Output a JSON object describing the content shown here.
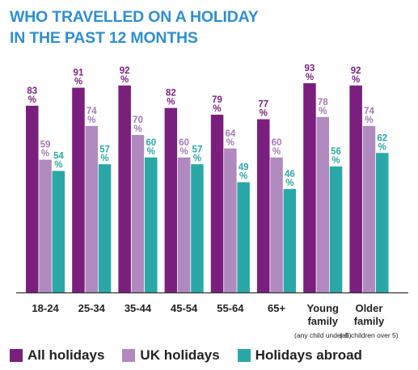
{
  "title_lines": [
    "WHO TRAVELLED ON A HOLIDAY",
    "IN THE PAST 12 MONTHS"
  ],
  "colors": {
    "title": "#2f8fd1",
    "all_holidays": "#7a1f7e",
    "uk_holidays": "#b08abf",
    "holidays_abroad": "#2aa8a7",
    "label_all": "#7a1f7e",
    "label_uk": "#a37ab3",
    "label_abroad": "#2aa8a7"
  },
  "chart_data": {
    "type": "bar",
    "title": "WHO TRAVELLED ON A HOLIDAY IN THE PAST 12 MONTHS",
    "categories": [
      "18-24",
      "25-34",
      "35-44",
      "45-54",
      "55-64",
      "65+",
      "Young family",
      "Older family"
    ],
    "category_lines": [
      [
        "18-24"
      ],
      [
        "25-34"
      ],
      [
        "35-44"
      ],
      [
        "45-54"
      ],
      [
        "55-64"
      ],
      [
        "65+"
      ],
      [
        "Young",
        "family"
      ],
      [
        "Older",
        "family"
      ]
    ],
    "category_notes": [
      "",
      "",
      "",
      "",
      "",
      "",
      "(any child under 5)",
      "(all children over 5)"
    ],
    "unit": "%",
    "series": [
      {
        "name": "All holidays",
        "values": [
          83,
          91,
          92,
          82,
          79,
          77,
          93,
          92
        ]
      },
      {
        "name": "UK holidays",
        "values": [
          59,
          74,
          70,
          60,
          64,
          60,
          78,
          74
        ]
      },
      {
        "name": "Holidays abroad",
        "values": [
          54,
          57,
          60,
          57,
          49,
          46,
          56,
          62
        ]
      }
    ],
    "ylim": [
      0,
      100
    ],
    "grid": false,
    "legend_position": "bottom"
  },
  "legend": [
    {
      "label": "All holidays",
      "color": "#7a1f7e"
    },
    {
      "label": "UK holidays",
      "color": "#b08abf"
    },
    {
      "label": "Holidays abroad",
      "color": "#2aa8a7"
    }
  ]
}
